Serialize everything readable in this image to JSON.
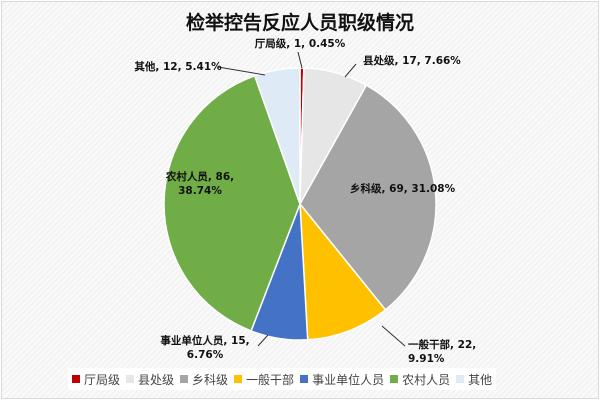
{
  "chart_data": {
    "type": "pie",
    "title": "检举控告反应人员职级情况",
    "categories": [
      "厅局级",
      "县处级",
      "乡科级",
      "一般干部",
      "事业单位人员",
      "农村人员",
      "其他"
    ],
    "values": [
      1,
      17,
      69,
      22,
      15,
      86,
      12
    ],
    "percentages": [
      "0.45%",
      "7.66%",
      "31.08%",
      "9.91%",
      "6.76%",
      "38.74%",
      "5.41%"
    ],
    "data_labels": [
      "厅局级, 1, 0.45%",
      "县处级, 17, 7.66%",
      "乡科级, 69, 31.08%",
      "一般干部, 22, 9.91%",
      "事业单位人员, 15, 6.76%",
      "农村人员, 86, 38.74%",
      "其他, 12, 5.41%"
    ],
    "colors": [
      "#C00000",
      "#E7E6E6",
      "#A5A5A5",
      "#FFC000",
      "#4472C4",
      "#70AD47",
      "#DEEBF7"
    ],
    "legend_position": "bottom"
  }
}
